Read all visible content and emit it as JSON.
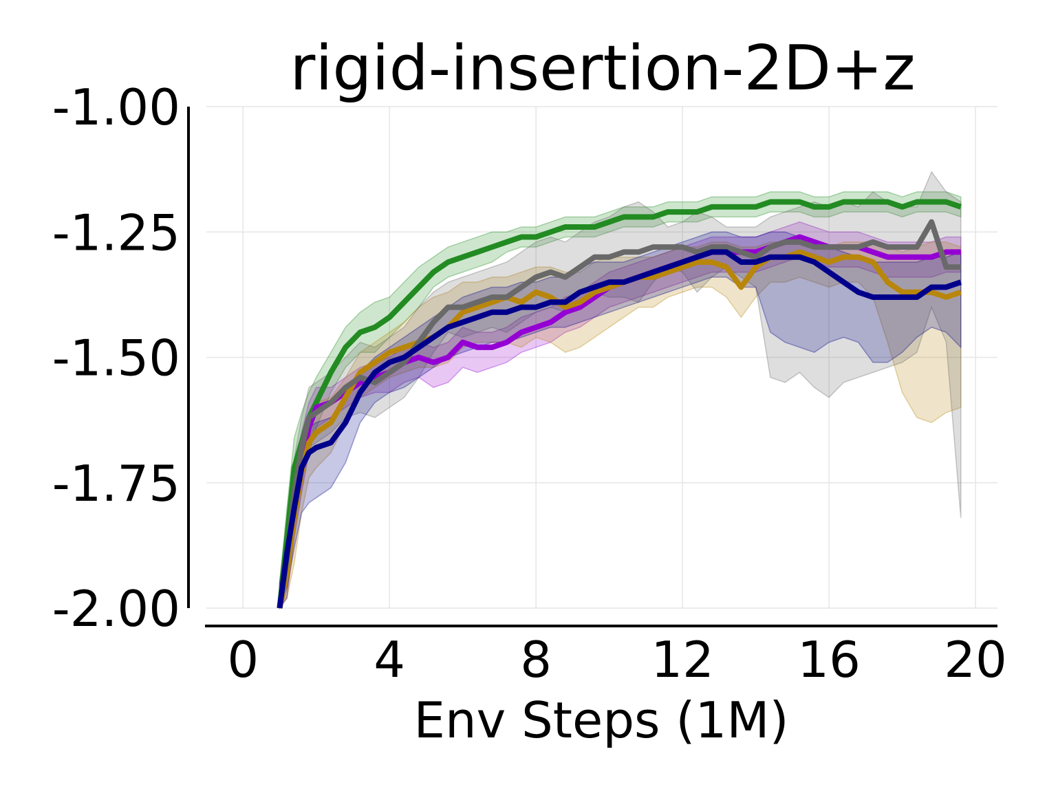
{
  "chart_data": {
    "type": "line",
    "title": "rigid-insertion-2D+z",
    "xlabel": "Env Steps (1M)",
    "ylabel": "",
    "xlim": [
      -1,
      20.6
    ],
    "ylim": [
      -2.0,
      -1.0
    ],
    "xticks": [
      0,
      4,
      8,
      12,
      16,
      20
    ],
    "xtick_labels": [
      "0",
      "4",
      "8",
      "12",
      "16",
      "20"
    ],
    "yticks": [
      -2.0,
      -1.75,
      -1.5,
      -1.25,
      -1.0
    ],
    "ytick_labels": [
      "-2.00",
      "-1.75",
      "-1.50",
      "-1.25",
      "-1.00"
    ],
    "grid": true,
    "legend": "none",
    "x": [
      1.0,
      1.2,
      1.4,
      1.6,
      1.8,
      2.0,
      2.4,
      2.8,
      3.2,
      3.6,
      4.0,
      4.4,
      4.8,
      5.2,
      5.6,
      6.0,
      6.4,
      6.8,
      7.2,
      7.6,
      8.0,
      8.4,
      8.8,
      9.2,
      9.6,
      10.0,
      10.4,
      10.8,
      11.2,
      11.6,
      12.0,
      12.4,
      12.8,
      13.2,
      13.6,
      14.0,
      14.4,
      14.8,
      15.2,
      15.6,
      16.0,
      16.4,
      16.8,
      17.2,
      17.6,
      18.0,
      18.4,
      18.8,
      19.2,
      19.6
    ],
    "series": [
      {
        "color": "#228B22",
        "values": [
          -2.0,
          -1.86,
          -1.72,
          -1.67,
          -1.62,
          -1.59,
          -1.53,
          -1.48,
          -1.45,
          -1.44,
          -1.42,
          -1.39,
          -1.36,
          -1.33,
          -1.31,
          -1.3,
          -1.29,
          -1.28,
          -1.27,
          -1.26,
          -1.26,
          -1.25,
          -1.24,
          -1.24,
          -1.24,
          -1.23,
          -1.22,
          -1.22,
          -1.22,
          -1.21,
          -1.21,
          -1.21,
          -1.2,
          -1.2,
          -1.2,
          -1.2,
          -1.19,
          -1.19,
          -1.19,
          -1.2,
          -1.2,
          -1.19,
          -1.19,
          -1.19,
          -1.19,
          -1.2,
          -1.19,
          -1.19,
          -1.19,
          -1.2
        ],
        "upper": [
          -1.95,
          -1.8,
          -1.66,
          -1.61,
          -1.57,
          -1.54,
          -1.49,
          -1.44,
          -1.41,
          -1.39,
          -1.38,
          -1.35,
          -1.32,
          -1.3,
          -1.28,
          -1.27,
          -1.26,
          -1.25,
          -1.25,
          -1.24,
          -1.24,
          -1.23,
          -1.22,
          -1.22,
          -1.22,
          -1.21,
          -1.2,
          -1.2,
          -1.2,
          -1.19,
          -1.19,
          -1.19,
          -1.18,
          -1.18,
          -1.18,
          -1.18,
          -1.17,
          -1.17,
          -1.17,
          -1.18,
          -1.18,
          -1.17,
          -1.17,
          -1.17,
          -1.17,
          -1.18,
          -1.17,
          -1.17,
          -1.17,
          -1.18
        ],
        "lower": [
          -2.0,
          -1.92,
          -1.78,
          -1.73,
          -1.67,
          -1.64,
          -1.57,
          -1.52,
          -1.49,
          -1.49,
          -1.46,
          -1.43,
          -1.4,
          -1.36,
          -1.34,
          -1.33,
          -1.32,
          -1.31,
          -1.29,
          -1.28,
          -1.28,
          -1.27,
          -1.26,
          -1.26,
          -1.26,
          -1.25,
          -1.24,
          -1.24,
          -1.24,
          -1.23,
          -1.23,
          -1.23,
          -1.22,
          -1.22,
          -1.22,
          -1.22,
          -1.21,
          -1.21,
          -1.21,
          -1.22,
          -1.22,
          -1.21,
          -1.21,
          -1.21,
          -1.21,
          -1.22,
          -1.21,
          -1.21,
          -1.21,
          -1.22
        ]
      },
      {
        "color": "#9400D3",
        "values": [
          -2.0,
          -1.92,
          -1.8,
          -1.71,
          -1.64,
          -1.6,
          -1.59,
          -1.57,
          -1.55,
          -1.54,
          -1.53,
          -1.51,
          -1.5,
          -1.51,
          -1.5,
          -1.47,
          -1.48,
          -1.48,
          -1.47,
          -1.45,
          -1.44,
          -1.43,
          -1.41,
          -1.4,
          -1.38,
          -1.36,
          -1.35,
          -1.34,
          -1.33,
          -1.32,
          -1.31,
          -1.3,
          -1.29,
          -1.29,
          -1.29,
          -1.29,
          -1.28,
          -1.27,
          -1.26,
          -1.27,
          -1.28,
          -1.28,
          -1.28,
          -1.29,
          -1.3,
          -1.3,
          -1.3,
          -1.3,
          -1.29,
          -1.29
        ],
        "upper": [
          -1.95,
          -1.86,
          -1.74,
          -1.65,
          -1.59,
          -1.56,
          -1.56,
          -1.54,
          -1.52,
          -1.51,
          -1.5,
          -1.48,
          -1.47,
          -1.48,
          -1.47,
          -1.44,
          -1.45,
          -1.45,
          -1.44,
          -1.42,
          -1.41,
          -1.4,
          -1.38,
          -1.37,
          -1.35,
          -1.33,
          -1.32,
          -1.31,
          -1.3,
          -1.29,
          -1.28,
          -1.27,
          -1.26,
          -1.26,
          -1.26,
          -1.26,
          -1.25,
          -1.24,
          -1.23,
          -1.24,
          -1.25,
          -1.25,
          -1.25,
          -1.26,
          -1.27,
          -1.27,
          -1.27,
          -1.27,
          -1.26,
          -1.26
        ],
        "lower": [
          -2.0,
          -1.98,
          -1.86,
          -1.77,
          -1.69,
          -1.64,
          -1.62,
          -1.6,
          -1.58,
          -1.57,
          -1.57,
          -1.55,
          -1.54,
          -1.56,
          -1.55,
          -1.52,
          -1.53,
          -1.52,
          -1.51,
          -1.49,
          -1.48,
          -1.47,
          -1.45,
          -1.44,
          -1.42,
          -1.4,
          -1.39,
          -1.38,
          -1.37,
          -1.36,
          -1.35,
          -1.34,
          -1.33,
          -1.33,
          -1.33,
          -1.33,
          -1.32,
          -1.31,
          -1.3,
          -1.31,
          -1.32,
          -1.32,
          -1.32,
          -1.33,
          -1.34,
          -1.34,
          -1.34,
          -1.34,
          -1.33,
          -1.33
        ]
      },
      {
        "color": "#B8860B",
        "values": [
          -2.0,
          -1.93,
          -1.82,
          -1.73,
          -1.67,
          -1.65,
          -1.63,
          -1.58,
          -1.53,
          -1.51,
          -1.49,
          -1.48,
          -1.47,
          -1.46,
          -1.44,
          -1.41,
          -1.4,
          -1.39,
          -1.38,
          -1.39,
          -1.37,
          -1.38,
          -1.4,
          -1.39,
          -1.37,
          -1.36,
          -1.35,
          -1.34,
          -1.34,
          -1.33,
          -1.32,
          -1.31,
          -1.31,
          -1.32,
          -1.36,
          -1.32,
          -1.3,
          -1.3,
          -1.29,
          -1.3,
          -1.31,
          -1.3,
          -1.3,
          -1.31,
          -1.35,
          -1.37,
          -1.37,
          -1.37,
          -1.38,
          -1.37
        ],
        "upper": [
          -1.95,
          -1.86,
          -1.74,
          -1.66,
          -1.61,
          -1.59,
          -1.58,
          -1.54,
          -1.49,
          -1.47,
          -1.45,
          -1.43,
          -1.4,
          -1.38,
          -1.37,
          -1.35,
          -1.35,
          -1.34,
          -1.34,
          -1.33,
          -1.32,
          -1.32,
          -1.33,
          -1.33,
          -1.31,
          -1.3,
          -1.3,
          -1.3,
          -1.3,
          -1.29,
          -1.28,
          -1.28,
          -1.27,
          -1.27,
          -1.28,
          -1.28,
          -1.27,
          -1.27,
          -1.27,
          -1.27,
          -1.28,
          -1.27,
          -1.27,
          -1.27,
          -1.28,
          -1.29,
          -1.28,
          -1.27,
          -1.27,
          -1.28
        ],
        "lower": [
          -2.0,
          -1.98,
          -1.91,
          -1.81,
          -1.74,
          -1.72,
          -1.69,
          -1.63,
          -1.58,
          -1.56,
          -1.54,
          -1.53,
          -1.52,
          -1.52,
          -1.51,
          -1.48,
          -1.47,
          -1.47,
          -1.47,
          -1.48,
          -1.46,
          -1.47,
          -1.49,
          -1.48,
          -1.46,
          -1.44,
          -1.42,
          -1.4,
          -1.4,
          -1.38,
          -1.37,
          -1.36,
          -1.36,
          -1.38,
          -1.42,
          -1.38,
          -1.35,
          -1.35,
          -1.34,
          -1.35,
          -1.36,
          -1.35,
          -1.35,
          -1.38,
          -1.47,
          -1.57,
          -1.62,
          -1.63,
          -1.61,
          -1.6
        ]
      },
      {
        "color": "#696969",
        "values": [
          -2.0,
          -1.9,
          -1.77,
          -1.68,
          -1.62,
          -1.61,
          -1.59,
          -1.56,
          -1.54,
          -1.55,
          -1.53,
          -1.51,
          -1.47,
          -1.43,
          -1.4,
          -1.4,
          -1.39,
          -1.38,
          -1.38,
          -1.36,
          -1.34,
          -1.33,
          -1.34,
          -1.32,
          -1.3,
          -1.3,
          -1.29,
          -1.29,
          -1.28,
          -1.28,
          -1.28,
          -1.29,
          -1.28,
          -1.28,
          -1.29,
          -1.3,
          -1.28,
          -1.27,
          -1.27,
          -1.28,
          -1.28,
          -1.28,
          -1.28,
          -1.27,
          -1.28,
          -1.28,
          -1.28,
          -1.23,
          -1.32,
          -1.32
        ],
        "upper": [
          -1.95,
          -1.82,
          -1.7,
          -1.62,
          -1.56,
          -1.55,
          -1.53,
          -1.5,
          -1.47,
          -1.48,
          -1.46,
          -1.44,
          -1.4,
          -1.37,
          -1.35,
          -1.34,
          -1.33,
          -1.32,
          -1.31,
          -1.29,
          -1.27,
          -1.26,
          -1.27,
          -1.25,
          -1.23,
          -1.22,
          -1.2,
          -1.19,
          -1.21,
          -1.24,
          -1.23,
          -1.21,
          -1.22,
          -1.24,
          -1.24,
          -1.24,
          -1.22,
          -1.21,
          -1.2,
          -1.19,
          -1.2,
          -1.19,
          -1.2,
          -1.17,
          -1.19,
          -1.2,
          -1.2,
          -1.13,
          -1.17,
          -1.19
        ],
        "lower": [
          -2.0,
          -1.98,
          -1.84,
          -1.74,
          -1.68,
          -1.67,
          -1.65,
          -1.62,
          -1.61,
          -1.62,
          -1.6,
          -1.58,
          -1.54,
          -1.49,
          -1.45,
          -1.46,
          -1.45,
          -1.44,
          -1.45,
          -1.43,
          -1.41,
          -1.4,
          -1.41,
          -1.39,
          -1.37,
          -1.38,
          -1.38,
          -1.39,
          -1.35,
          -1.32,
          -1.33,
          -1.37,
          -1.34,
          -1.32,
          -1.34,
          -1.36,
          -1.54,
          -1.55,
          -1.53,
          -1.56,
          -1.58,
          -1.55,
          -1.54,
          -1.53,
          -1.52,
          -1.51,
          -1.49,
          -1.4,
          -1.47,
          -1.82
        ]
      },
      {
        "color": "#00008B",
        "values": [
          -2.0,
          -1.89,
          -1.8,
          -1.72,
          -1.69,
          -1.68,
          -1.67,
          -1.63,
          -1.57,
          -1.53,
          -1.51,
          -1.5,
          -1.48,
          -1.46,
          -1.44,
          -1.43,
          -1.42,
          -1.41,
          -1.41,
          -1.4,
          -1.4,
          -1.39,
          -1.39,
          -1.37,
          -1.36,
          -1.35,
          -1.35,
          -1.34,
          -1.33,
          -1.32,
          -1.31,
          -1.3,
          -1.29,
          -1.29,
          -1.31,
          -1.31,
          -1.3,
          -1.3,
          -1.3,
          -1.31,
          -1.33,
          -1.35,
          -1.37,
          -1.38,
          -1.38,
          -1.38,
          -1.38,
          -1.36,
          -1.36,
          -1.35
        ],
        "upper": [
          -1.95,
          -1.83,
          -1.74,
          -1.67,
          -1.64,
          -1.63,
          -1.62,
          -1.58,
          -1.53,
          -1.5,
          -1.48,
          -1.46,
          -1.44,
          -1.42,
          -1.4,
          -1.38,
          -1.37,
          -1.36,
          -1.36,
          -1.35,
          -1.35,
          -1.34,
          -1.34,
          -1.32,
          -1.31,
          -1.31,
          -1.31,
          -1.3,
          -1.29,
          -1.28,
          -1.27,
          -1.26,
          -1.25,
          -1.25,
          -1.26,
          -1.26,
          -1.25,
          -1.25,
          -1.26,
          -1.27,
          -1.28,
          -1.29,
          -1.3,
          -1.31,
          -1.31,
          -1.31,
          -1.31,
          -1.3,
          -1.3,
          -1.29
        ],
        "lower": [
          -2.0,
          -1.96,
          -1.88,
          -1.81,
          -1.79,
          -1.78,
          -1.76,
          -1.71,
          -1.63,
          -1.59,
          -1.57,
          -1.56,
          -1.54,
          -1.52,
          -1.5,
          -1.49,
          -1.48,
          -1.47,
          -1.47,
          -1.46,
          -1.45,
          -1.44,
          -1.44,
          -1.43,
          -1.42,
          -1.41,
          -1.4,
          -1.39,
          -1.38,
          -1.37,
          -1.36,
          -1.35,
          -1.34,
          -1.34,
          -1.36,
          -1.36,
          -1.45,
          -1.47,
          -1.48,
          -1.49,
          -1.47,
          -1.46,
          -1.47,
          -1.51,
          -1.51,
          -1.49,
          -1.46,
          -1.44,
          -1.45,
          -1.48
        ]
      }
    ]
  }
}
